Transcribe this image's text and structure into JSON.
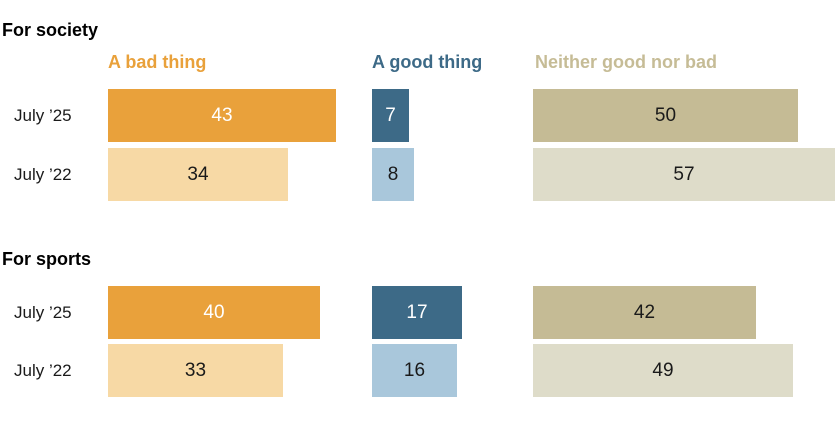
{
  "chart_data": {
    "type": "bar",
    "layout_hint": "two sections of horizontal paired bars, three color-coded answer columns, values are percentages shown inside bars",
    "sections": [
      {
        "title": "For society",
        "rows": [
          {
            "label": "July ’25",
            "shade": "dark",
            "values": {
              "bad": 43,
              "good": 7,
              "neither": 50
            }
          },
          {
            "label": "July ’22",
            "shade": "light",
            "values": {
              "bad": 34,
              "good": 8,
              "neither": 57
            }
          }
        ]
      },
      {
        "title": "For sports",
        "rows": [
          {
            "label": "July ’25",
            "shade": "dark",
            "values": {
              "bad": 40,
              "good": 17,
              "neither": 42
            }
          },
          {
            "label": "July ’22",
            "shade": "light",
            "values": {
              "bad": 33,
              "good": 16,
              "neither": 49
            }
          }
        ]
      }
    ],
    "series": [
      {
        "key": "bad",
        "label": "A bad thing",
        "header_color": "#E9A13B",
        "bar_colors": {
          "dark": "#E9A13B",
          "light": "#F7D9A5"
        },
        "value_text_colors": {
          "dark": "#FFFFFF",
          "light": "#1A1A1A"
        }
      },
      {
        "key": "good",
        "label": "A good thing",
        "header_color": "#3D6A87",
        "bar_colors": {
          "dark": "#3D6A87",
          "light": "#A9C7DB"
        },
        "value_text_colors": {
          "dark": "#FFFFFF",
          "light": "#1A1A1A"
        }
      },
      {
        "key": "neither",
        "label": "Neither good nor bad",
        "header_color": "#C6BC96",
        "bar_colors": {
          "dark": "#C5BB95",
          "light": "#DEDCC9"
        },
        "value_text_colors": {
          "dark": "#1A1A1A",
          "light": "#1A1A1A"
        }
      }
    ]
  }
}
